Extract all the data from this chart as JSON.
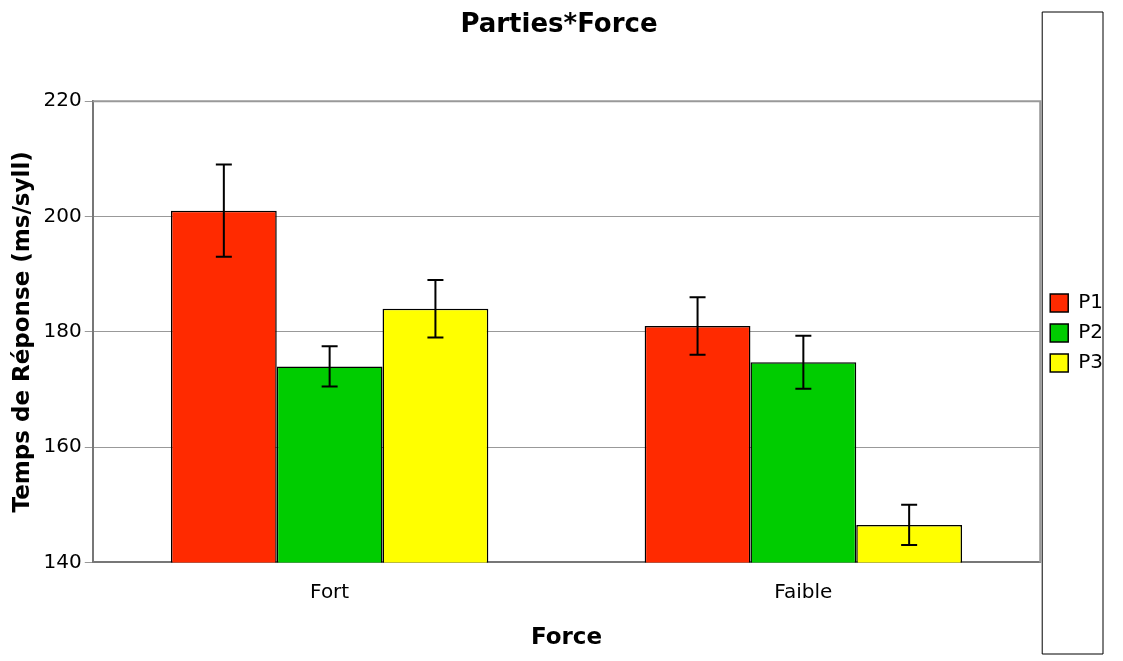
{
  "chart_data": {
    "type": "bar",
    "title": "Parties*Force",
    "xlabel": "Force",
    "ylabel": "Temps de Réponse (ms/syll)",
    "categories": [
      "Fort",
      "Faible"
    ],
    "series": [
      {
        "name": "P1",
        "color": "#ff2a00",
        "values": [
          201,
          181
        ],
        "errors": [
          8,
          5
        ]
      },
      {
        "name": "P2",
        "color": "#00cc00",
        "values": [
          174,
          174.7
        ],
        "errors": [
          3.5,
          4.6
        ]
      },
      {
        "name": "P3",
        "color": "#ffff00",
        "values": [
          184,
          146.5
        ],
        "errors": [
          5,
          3.5
        ]
      }
    ],
    "ylim": [
      140,
      220
    ],
    "yticks": [
      140,
      160,
      180,
      200,
      220
    ],
    "grid": "y",
    "legend": "right"
  }
}
